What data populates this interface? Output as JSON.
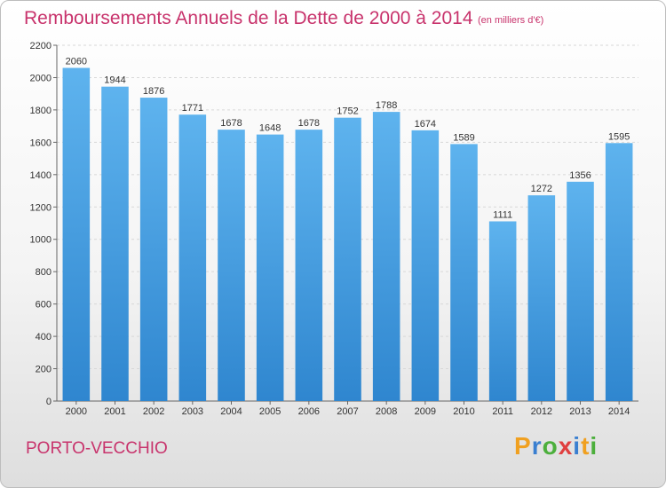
{
  "chart_data": {
    "type": "bar",
    "title": "Remboursements Annuels de la Dette de 2000 à 2014",
    "subtitle": "(en milliers d'€)",
    "categories": [
      "2000",
      "2001",
      "2002",
      "2003",
      "2004",
      "2005",
      "2006",
      "2007",
      "2008",
      "2009",
      "2010",
      "2011",
      "2012",
      "2013",
      "2014"
    ],
    "values": [
      2060,
      1944,
      1876,
      1771,
      1678,
      1648,
      1678,
      1752,
      1788,
      1674,
      1589,
      1111,
      1272,
      1356,
      1595
    ],
    "ylim": [
      0,
      2200
    ],
    "yticks": [
      0,
      200,
      400,
      600,
      800,
      1000,
      1200,
      1400,
      1600,
      1800,
      2000,
      2200
    ],
    "grid": true,
    "bar_color": "#4aa3e6"
  },
  "footer": {
    "commune": "PORTO-VECCHIO",
    "logo": "Proxiti",
    "logo_colors": [
      "#f0a020",
      "#3a7fd0",
      "#4caf3c",
      "#e04040",
      "#3a7fd0",
      "#f0a020",
      "#4caf3c"
    ]
  }
}
